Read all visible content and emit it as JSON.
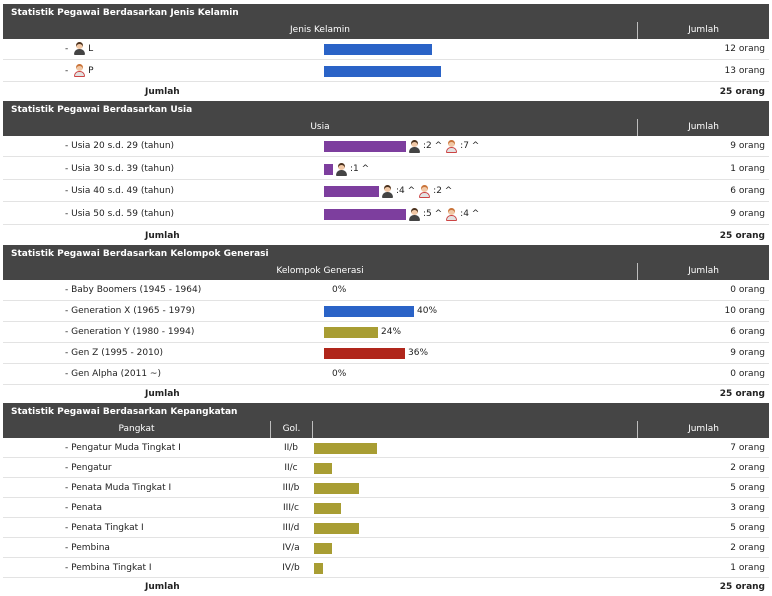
{
  "gender": {
    "title": "Statistik Pegawai Berdasarkan Jenis Kelamin",
    "col_main": "Jenis Kelamin",
    "col_total": "Jumlah",
    "rows": [
      {
        "label": "L",
        "icon": "male-icon",
        "amount": "12 orang",
        "value": 12
      },
      {
        "label": "P",
        "icon": "female-icon",
        "amount": "13 orang",
        "value": 13
      }
    ],
    "total_label": "Jumlah",
    "total_value": "25 orang"
  },
  "age": {
    "title": "Statistik Pegawai Berdasarkan Usia",
    "col_main": "Usia",
    "col_total": "Jumlah",
    "rows": [
      {
        "label": "- Usia 20 s.d. 29 (tahun)",
        "value": 9,
        "male": ":2 ^",
        "female": ":7 ^",
        "amount": "9 orang"
      },
      {
        "label": "- Usia 30 s.d. 39 (tahun)",
        "value": 1,
        "male": ":1 ^",
        "female": "",
        "amount": "1 orang"
      },
      {
        "label": "- Usia 40 s.d. 49 (tahun)",
        "value": 6,
        "male": ":4 ^",
        "female": ":2 ^",
        "amount": "6 orang"
      },
      {
        "label": "- Usia 50 s.d. 59 (tahun)",
        "value": 9,
        "male": ":5 ^",
        "female": ":4 ^",
        "amount": "9 orang"
      }
    ],
    "total_label": "Jumlah",
    "total_value": "25 orang"
  },
  "generation": {
    "title": "Statistik Pegawai Berdasarkan Kelompok Generasi",
    "col_main": "Kelompok Generasi",
    "col_total": "Jumlah",
    "rows": [
      {
        "label": "- Baby Boomers (1945 - 1964)",
        "percent": 0,
        "pct": "0%",
        "amount": "0 orang",
        "color": "#2a63c7"
      },
      {
        "label": "- Generation X (1965 - 1979)",
        "percent": 40,
        "pct": "40%",
        "amount": "10 orang",
        "color": "#2a63c7"
      },
      {
        "label": "- Generation Y (1980 - 1994)",
        "percent": 24,
        "pct": "24%",
        "amount": "6 orang",
        "color": "#a89d33"
      },
      {
        "label": "- Gen Z (1995 - 2010)",
        "percent": 36,
        "pct": "36%",
        "amount": "9 orang",
        "color": "#b0261b"
      },
      {
        "label": "- Gen Alpha (2011 ~)",
        "percent": 0,
        "pct": "0%",
        "amount": "0 orang",
        "color": "#2a63c7"
      }
    ],
    "total_label": "Jumlah",
    "total_value": "25 orang"
  },
  "rank": {
    "title": "Statistik Pegawai Berdasarkan Kepangkatan",
    "col_main": "Pangkat",
    "col_gol": "Gol.",
    "col_total": "Jumlah",
    "rows": [
      {
        "label": "- Pengatur Muda Tingkat I",
        "gol": "II/b",
        "value": 7,
        "amount": "7 orang"
      },
      {
        "label": "- Pengatur",
        "gol": "II/c",
        "value": 2,
        "amount": "2 orang"
      },
      {
        "label": "- Penata Muda Tingkat I",
        "gol": "III/b",
        "value": 5,
        "amount": "5 orang"
      },
      {
        "label": "- Penata",
        "gol": "III/c",
        "value": 3,
        "amount": "3 orang"
      },
      {
        "label": "- Penata Tingkat I",
        "gol": "III/d",
        "value": 5,
        "amount": "5 orang"
      },
      {
        "label": "- Pembina",
        "gol": "IV/a",
        "value": 2,
        "amount": "2 orang"
      },
      {
        "label": "- Pembina Tingkat I",
        "gol": "IV/b",
        "value": 1,
        "amount": "1 orang"
      }
    ],
    "total_label": "Jumlah",
    "total_value": "25 orang"
  },
  "colors": {
    "header_bg": "#454545",
    "blue": "#2a63c7",
    "purple": "#7d3e9e",
    "olive": "#a89d33",
    "red": "#b0261b"
  }
}
